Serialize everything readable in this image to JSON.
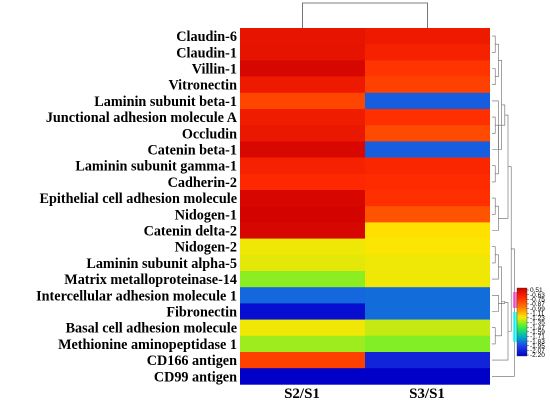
{
  "chart_data": {
    "type": "heatmap",
    "columns": [
      "S2/S1",
      "S3/S1"
    ],
    "rows": [
      "Claudin-6",
      "Claudin-1",
      "Villin-1",
      "Vitronectin",
      "Laminin subunit beta-1",
      "Junctional adhesion molecule A",
      "Occludin",
      "Catenin beta-1",
      "Laminin subunit gamma-1",
      "Cadherin-2",
      "Epithelial cell adhesion molecule",
      "Nidogen-1",
      "Catenin delta-2",
      "Nidogen-2",
      "Laminin subunit alpha-5",
      "Matrix metalloproteinase-14",
      "Intercellular adhesion molecule 1",
      "Fibronectin",
      "Basal cell adhesion molecule",
      "Methionine aminopeptidase 1",
      "CD166 antigen",
      "CD99 antigen"
    ],
    "values": [
      [
        -0.68,
        -0.72
      ],
      [
        -0.66,
        -0.78
      ],
      [
        -0.55,
        -0.9
      ],
      [
        -0.72,
        -0.96
      ],
      [
        -0.98,
        -2.55
      ],
      [
        -0.74,
        -0.88
      ],
      [
        -0.7,
        -1.0
      ],
      [
        -0.57,
        -2.55
      ],
      [
        -0.78,
        -0.82
      ],
      [
        -0.84,
        -0.86
      ],
      [
        -0.56,
        -0.88
      ],
      [
        -0.53,
        -1.04
      ],
      [
        -0.55,
        -1.55
      ],
      [
        -1.6,
        -1.58
      ],
      [
        -1.62,
        -1.6
      ],
      [
        -1.78,
        -1.6
      ],
      [
        -2.52,
        -2.5
      ],
      [
        -2.92,
        -2.5
      ],
      [
        -1.6,
        -1.68
      ],
      [
        -1.75,
        -1.8
      ],
      [
        -0.96,
        -2.8
      ],
      [
        -3.0,
        -3.0
      ]
    ],
    "colorbar": {
      "ticks": [
        "0.51",
        "-0.63",
        "-0.75",
        "-0.87",
        "-0.99",
        "-1.11",
        "-1.23",
        "-1.35",
        "-1.47",
        "-1.59",
        "-1.71",
        "-1.83",
        "-1.95",
        "-2.07",
        "-2.20"
      ],
      "color_stops": [
        "#cf0000",
        "#ff2a00",
        "#ff7a00",
        "#ffe600",
        "#3cf23c",
        "#00b0c8",
        "#1e40e8",
        "#0000c8"
      ],
      "position": "right",
      "gradient_note_colors": [
        "#ff33cc",
        "#00ffff"
      ]
    },
    "dendrogram": {
      "columns": true,
      "rows": true
    }
  }
}
